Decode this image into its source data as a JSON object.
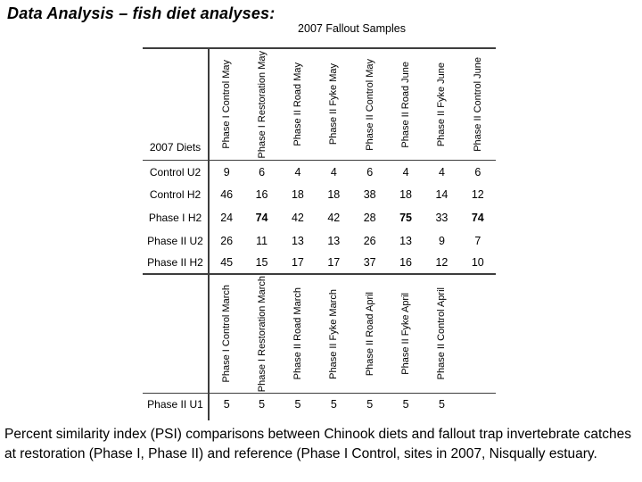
{
  "slide": {
    "title": "Data Analysis – fish diet analyses:",
    "samples_header": "2007 Fallout Samples",
    "caption": "Percent similarity index (PSI) comparisons between Chinook diets and fallout trap invertebrate catches at restoration (Phase I, Phase II) and reference (Phase I Control, sites in 2007, Nisqually estuary."
  },
  "table": {
    "corner_label": "2007 Diets",
    "section1": {
      "columns": [
        "Phase I Control May",
        "Phase I Restoration May",
        "Phase II Road May",
        "Phase II Fyke May",
        "Phase II Control May",
        "Phase II Road June",
        "Phase II Fyke June",
        "Phase II Control June"
      ],
      "rows": [
        {
          "label": "Control U2",
          "values": [
            "9",
            "6",
            "4",
            "4",
            "6",
            "4",
            "4",
            "6"
          ]
        },
        {
          "label": "Control H2",
          "values": [
            "46",
            "16",
            "18",
            "18",
            "38",
            "18",
            "14",
            "12"
          ]
        },
        {
          "label": "Phase I H2",
          "values": [
            "24",
            "74",
            "42",
            "42",
            "28",
            "75",
            "33",
            "74"
          ]
        },
        {
          "label": "Phase II U2",
          "values": [
            "26",
            "11",
            "13",
            "13",
            "26",
            "13",
            "9",
            "7"
          ]
        },
        {
          "label": "Phase II H2",
          "values": [
            "45",
            "15",
            "17",
            "17",
            "37",
            "16",
            "12",
            "10"
          ]
        }
      ]
    },
    "section2": {
      "columns": [
        "Phase I Control March",
        "Phase I Restoration March",
        "Phase II Road March",
        "Phase II Fyke March",
        "Phase II Road April",
        "Phase II Fyke April",
        "Phase II Control April",
        ""
      ],
      "rows": [
        {
          "label": "Phase II U1",
          "values": [
            "5",
            "5",
            "5",
            "5",
            "5",
            "5",
            "5",
            ""
          ]
        }
      ]
    }
  }
}
